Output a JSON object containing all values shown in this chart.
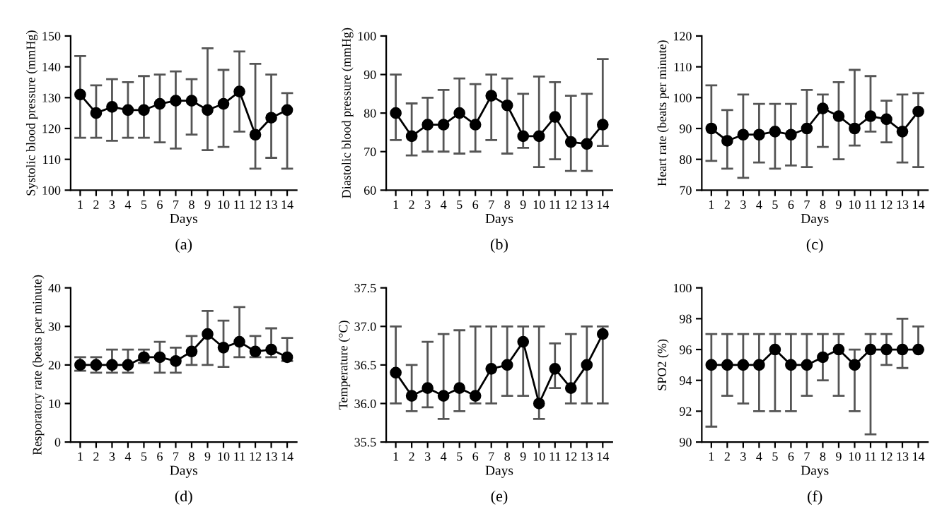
{
  "chart_data": [
    {
      "type": "line",
      "xlabel": "Days",
      "ylabel": "Systolic blood pressure (mmHg)",
      "annotations": [
        "(a)"
      ],
      "categories": [
        "1",
        "2",
        "3",
        "4",
        "5",
        "6",
        "7",
        "8",
        "9",
        "10",
        "11",
        "12",
        "13",
        "14"
      ],
      "ylim": [
        100,
        150
      ],
      "yticks": [
        100,
        110,
        120,
        130,
        140,
        150
      ],
      "marker": "circle",
      "grid": false,
      "series": [
        {
          "color": "#000000",
          "values": [
            131,
            125,
            127,
            126,
            126,
            128,
            129,
            129,
            126,
            128,
            132,
            118,
            123.5,
            126
          ],
          "errors": [
            [
              117,
              143.5
            ],
            [
              117,
              134
            ],
            [
              116,
              136
            ],
            [
              117,
              135
            ],
            [
              117,
              137
            ],
            [
              115.5,
              137.5
            ],
            [
              113.5,
              138.5
            ],
            [
              118,
              136
            ],
            [
              113,
              146
            ],
            [
              114,
              139
            ],
            [
              119,
              145
            ],
            [
              107,
              141
            ],
            [
              110.5,
              137.5
            ],
            [
              107,
              131.5
            ]
          ]
        }
      ]
    },
    {
      "type": "line",
      "xlabel": "Days",
      "ylabel": "Diastolic blood pressure (mmHg)",
      "annotations": [
        "(b)"
      ],
      "categories": [
        "1",
        "2",
        "3",
        "4",
        "5",
        "6",
        "7",
        "8",
        "9",
        "10",
        "11",
        "12",
        "13",
        "14"
      ],
      "ylim": [
        60,
        100
      ],
      "yticks": [
        60,
        70,
        80,
        90,
        100
      ],
      "marker": "circle",
      "grid": false,
      "series": [
        {
          "color": "#000000",
          "values": [
            80,
            74,
            77,
            77,
            80,
            77,
            84.5,
            82,
            74,
            74,
            79,
            72.5,
            72,
            77
          ],
          "errors": [
            [
              73,
              90
            ],
            [
              69,
              82.5
            ],
            [
              70,
              84
            ],
            [
              70,
              86
            ],
            [
              69.5,
              89
            ],
            [
              70,
              87.5
            ],
            [
              73,
              90
            ],
            [
              69.5,
              89
            ],
            [
              71,
              85
            ],
            [
              66,
              89.5
            ],
            [
              68,
              88
            ],
            [
              65,
              84.5
            ],
            [
              65,
              85
            ],
            [
              71.5,
              94
            ]
          ]
        }
      ]
    },
    {
      "type": "line",
      "xlabel": "Days",
      "ylabel": "Heart rate (beats per minute)",
      "annotations": [
        "(c)"
      ],
      "categories": [
        "1",
        "2",
        "3",
        "4",
        "5",
        "6",
        "7",
        "8",
        "9",
        "10",
        "11",
        "12",
        "13",
        "14"
      ],
      "ylim": [
        70,
        120
      ],
      "yticks": [
        70,
        80,
        90,
        100,
        110,
        120
      ],
      "marker": "circle",
      "grid": false,
      "series": [
        {
          "color": "#000000",
          "values": [
            90,
            86,
            88,
            88,
            89,
            88,
            90,
            96.5,
            94,
            90,
            94,
            93,
            89,
            95.5
          ],
          "errors": [
            [
              79.5,
              104
            ],
            [
              77,
              96
            ],
            [
              74,
              101
            ],
            [
              79,
              98
            ],
            [
              77,
              98
            ],
            [
              78,
              98
            ],
            [
              77.5,
              102.5
            ],
            [
              84,
              101
            ],
            [
              80,
              105
            ],
            [
              84.5,
              109
            ],
            [
              89,
              107
            ],
            [
              85.5,
              99
            ],
            [
              79,
              101
            ],
            [
              77.5,
              101.5
            ]
          ]
        }
      ]
    },
    {
      "type": "line",
      "xlabel": "Days",
      "ylabel": "Resporatory rate (beats per minute)",
      "annotations": [
        "(d)"
      ],
      "categories": [
        "1",
        "2",
        "3",
        "4",
        "5",
        "6",
        "7",
        "8",
        "9",
        "10",
        "11",
        "12",
        "13",
        "14"
      ],
      "ylim": [
        0,
        40
      ],
      "yticks": [
        0,
        10,
        20,
        30,
        40
      ],
      "marker": "circle",
      "grid": false,
      "series": [
        {
          "color": "#000000",
          "values": [
            20,
            20,
            20,
            20,
            22,
            22,
            21,
            23.5,
            28,
            24.5,
            26,
            23.5,
            24,
            22
          ],
          "errors": [
            [
              18.5,
              22
            ],
            [
              18,
              22
            ],
            [
              18,
              24
            ],
            [
              18,
              24
            ],
            [
              20.5,
              24
            ],
            [
              18,
              26
            ],
            [
              18,
              24.5
            ],
            [
              20,
              27.5
            ],
            [
              20,
              34
            ],
            [
              19.5,
              31.5
            ],
            [
              22,
              35
            ],
            [
              22,
              27.5
            ],
            [
              22,
              29.5
            ],
            [
              21,
              27
            ]
          ]
        }
      ]
    },
    {
      "type": "line",
      "xlabel": "Days",
      "ylabel": "Temperature (°C)",
      "annotations": [
        "(e)"
      ],
      "categories": [
        "1",
        "2",
        "3",
        "4",
        "5",
        "6",
        "7",
        "8",
        "9",
        "10",
        "11",
        "12",
        "13",
        "14"
      ],
      "ylim": [
        35.5,
        37.5
      ],
      "yticks": [
        35.5,
        {
          "value": 36,
          "label": "36.0"
        },
        36.5,
        {
          "value": 37,
          "label": "37.0"
        },
        37.5
      ],
      "marker": "circle",
      "grid": false,
      "series": [
        {
          "color": "#000000",
          "values": [
            36.4,
            36.1,
            36.2,
            36.1,
            36.2,
            36.1,
            36.45,
            36.5,
            36.8,
            36.0,
            36.45,
            36.2,
            36.5,
            36.9
          ],
          "errors": [
            [
              36.0,
              37.0
            ],
            [
              35.9,
              36.5
            ],
            [
              35.95,
              36.8
            ],
            [
              35.8,
              36.9
            ],
            [
              35.9,
              36.95
            ],
            [
              36.0,
              37.0
            ],
            [
              36.0,
              37.0
            ],
            [
              36.1,
              37.0
            ],
            [
              36.1,
              37.0
            ],
            [
              35.8,
              37.0
            ],
            [
              36.2,
              36.78
            ],
            [
              36.0,
              36.9
            ],
            [
              36.0,
              37.0
            ],
            [
              36.0,
              37.0
            ]
          ]
        }
      ]
    },
    {
      "type": "line",
      "xlabel": "Days",
      "ylabel": "SPO2 (%)",
      "annotations": [
        "(f)"
      ],
      "categories": [
        "1",
        "2",
        "3",
        "4",
        "5",
        "6",
        "7",
        "8",
        "9",
        "10",
        "11",
        "12",
        "13",
        "14"
      ],
      "ylim": [
        90,
        100
      ],
      "yticks": [
        90,
        92,
        94,
        96,
        98,
        100
      ],
      "marker": "circle",
      "grid": false,
      "series": [
        {
          "color": "#000000",
          "values": [
            95,
            95,
            95,
            95,
            96,
            95,
            95,
            95.5,
            96,
            95,
            96,
            96,
            96,
            96
          ],
          "errors": [
            [
              91,
              97
            ],
            [
              93,
              97
            ],
            [
              92.5,
              97
            ],
            [
              92,
              97
            ],
            [
              92,
              97
            ],
            [
              92,
              97
            ],
            [
              93,
              97
            ],
            [
              94,
              97
            ],
            [
              93,
              97
            ],
            [
              92,
              96
            ],
            [
              90.5,
              97
            ],
            [
              95,
              97
            ],
            [
              94.8,
              98
            ],
            [
              96,
              97.5
            ]
          ]
        }
      ]
    }
  ]
}
